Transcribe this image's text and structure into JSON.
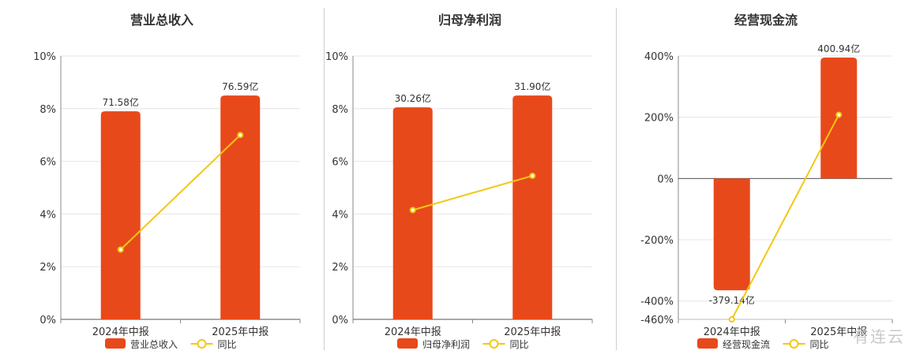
{
  "chart_data": [
    {
      "type": "bar",
      "title": "营业总收入",
      "categories": [
        "2024年中报",
        "2025年中报"
      ],
      "y_ticks": [
        "0%",
        "2%",
        "4%",
        "6%",
        "8%",
        "10%"
      ],
      "ylim": [
        0,
        10
      ],
      "series": [
        {
          "name": "营业总收入",
          "type": "bar",
          "values": [
            7.9,
            8.5
          ],
          "labels": [
            "71.58亿",
            "76.59亿"
          ],
          "color": "#E8491B"
        },
        {
          "name": "同比",
          "type": "line",
          "values": [
            2.65,
            7.0
          ],
          "color": "#F2C811"
        }
      ],
      "grid": true,
      "legend_position": "bottom"
    },
    {
      "type": "bar",
      "title": "归母净利润",
      "categories": [
        "2024年中报",
        "2025年中报"
      ],
      "y_ticks": [
        "0%",
        "2%",
        "4%",
        "6%",
        "8%",
        "10%"
      ],
      "ylim": [
        0,
        10
      ],
      "series": [
        {
          "name": "归母净利润",
          "type": "bar",
          "values": [
            8.05,
            8.5
          ],
          "labels": [
            "30.26亿",
            "31.90亿"
          ],
          "color": "#E8491B"
        },
        {
          "name": "同比",
          "type": "line",
          "values": [
            4.15,
            5.45
          ],
          "color": "#F2C811"
        }
      ],
      "grid": true,
      "legend_position": "bottom"
    },
    {
      "type": "bar",
      "title": "经营现金流",
      "categories": [
        "2024年中报",
        "2025年中报"
      ],
      "y_ticks": [
        "-460%",
        "-400%",
        "-200%",
        "0%",
        "200%",
        "400%"
      ],
      "y_tick_values": [
        -460,
        -400,
        -200,
        0,
        200,
        400
      ],
      "ylim": [
        -460,
        400
      ],
      "series": [
        {
          "name": "经营现金流",
          "type": "bar",
          "values": [
            -365,
            395
          ],
          "labels": [
            "-379.14亿",
            "400.94亿"
          ],
          "color": "#E8491B"
        },
        {
          "name": "同比",
          "type": "line",
          "values": [
            -460,
            208
          ],
          "color": "#F2C811"
        }
      ],
      "grid": true,
      "legend_position": "bottom"
    }
  ],
  "watermark": "有连云"
}
